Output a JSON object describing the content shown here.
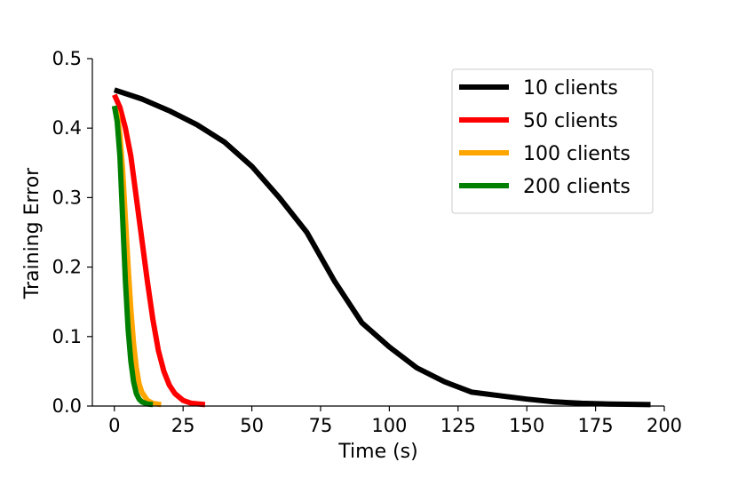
{
  "chart_data": {
    "type": "line",
    "xlabel": "Time (s)",
    "ylabel": "Training Error",
    "xlim": [
      -8,
      200
    ],
    "ylim": [
      0.0,
      0.5
    ],
    "xticks": [
      0,
      25,
      50,
      75,
      100,
      125,
      150,
      175,
      200
    ],
    "xtick_labels": [
      "0",
      "25",
      "50",
      "75",
      "100",
      "125",
      "150",
      "175",
      "200"
    ],
    "yticks": [
      0.0,
      0.1,
      0.2,
      0.3,
      0.4,
      0.5
    ],
    "ytick_labels": [
      "0.0",
      "0.1",
      "0.2",
      "0.3",
      "0.4",
      "0.5"
    ],
    "legend_position": "top-right",
    "grid": false,
    "series": [
      {
        "name": "10 clients",
        "color": "#000000",
        "x": [
          0,
          10,
          20,
          30,
          40,
          50,
          60,
          70,
          80,
          90,
          100,
          110,
          120,
          130,
          140,
          150,
          160,
          170,
          180,
          195
        ],
        "y": [
          0.455,
          0.442,
          0.425,
          0.405,
          0.38,
          0.345,
          0.3,
          0.25,
          0.18,
          0.12,
          0.085,
          0.055,
          0.035,
          0.02,
          0.015,
          0.01,
          0.006,
          0.004,
          0.003,
          0.002
        ]
      },
      {
        "name": "50 clients",
        "color": "#ff0000",
        "x": [
          0,
          2,
          4,
          6,
          8,
          10,
          12,
          14,
          16,
          18,
          20,
          22,
          25,
          28,
          33
        ],
        "y": [
          0.448,
          0.43,
          0.4,
          0.36,
          0.3,
          0.24,
          0.18,
          0.125,
          0.08,
          0.05,
          0.03,
          0.018,
          0.008,
          0.004,
          0.002
        ]
      },
      {
        "name": "100 clients",
        "color": "#ffa500",
        "x": [
          0,
          1,
          2,
          3,
          4,
          5,
          6,
          7,
          8,
          9,
          10,
          12,
          14,
          17
        ],
        "y": [
          0.43,
          0.42,
          0.39,
          0.34,
          0.27,
          0.2,
          0.14,
          0.09,
          0.055,
          0.032,
          0.02,
          0.008,
          0.004,
          0.002
        ]
      },
      {
        "name": "200 clients",
        "color": "#008000",
        "x": [
          0,
          1,
          2,
          3,
          4,
          5,
          6,
          7,
          8,
          9,
          10,
          12,
          14
        ],
        "y": [
          0.432,
          0.41,
          0.36,
          0.27,
          0.18,
          0.11,
          0.065,
          0.035,
          0.018,
          0.01,
          0.006,
          0.003,
          0.002
        ]
      }
    ]
  }
}
